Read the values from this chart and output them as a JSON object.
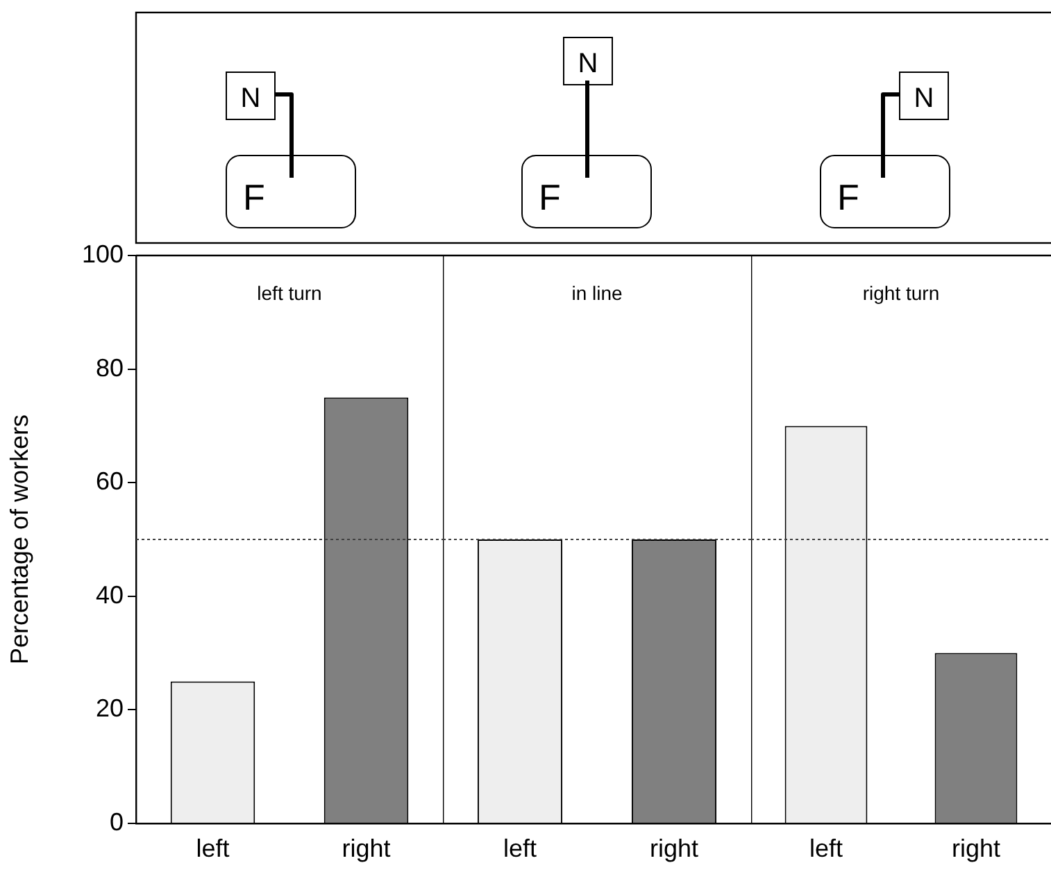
{
  "chart_data": [
    {
      "type": "bar",
      "title": "left turn",
      "ylabel": "Percentage of workers",
      "categories": [
        "left",
        "right"
      ],
      "values": [
        25,
        75
      ],
      "colors": [
        "#eeeeee",
        "#808080"
      ],
      "ylim": [
        0,
        100
      ],
      "yticks": [
        0,
        20,
        40,
        60,
        80,
        100
      ],
      "ref_lines": [
        {
          "axis": "y",
          "value": 50,
          "color": "#404040",
          "line_style": "dotted"
        }
      ],
      "annotations": [
        "N",
        "F"
      ]
    },
    {
      "type": "bar",
      "title": "in line",
      "categories": [
        "left",
        "right"
      ],
      "values": [
        50,
        50
      ],
      "colors": [
        "#eeeeee",
        "#808080"
      ],
      "ylim": [
        0,
        100
      ],
      "tick_labels": "x",
      "ref_lines": [
        {
          "axis": "y",
          "value": 50,
          "color": "#404040",
          "line_style": "dotted"
        }
      ],
      "annotations": [
        "N",
        "F"
      ]
    },
    {
      "type": "bar",
      "title": "right turn",
      "categories": [
        "left",
        "right"
      ],
      "values": [
        70,
        30
      ],
      "colors": [
        "#eeeeee",
        "#808080"
      ],
      "ylim": [
        0,
        100
      ],
      "tick_labels": "x",
      "ref_lines": [
        {
          "axis": "y",
          "value": 50,
          "color": "#404040",
          "line_style": "dotted"
        }
      ],
      "annotations": [
        "N",
        "F"
      ]
    }
  ]
}
